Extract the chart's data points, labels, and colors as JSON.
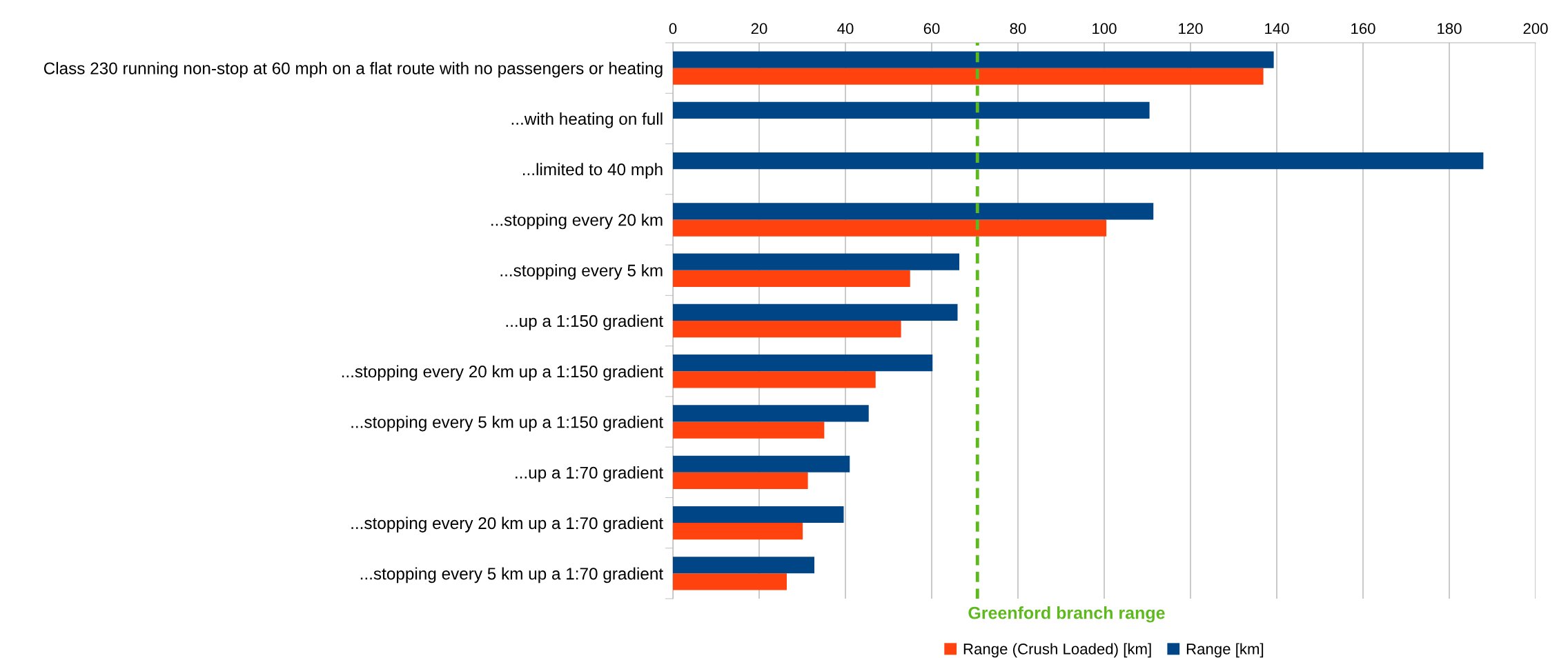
{
  "chart_data": {
    "type": "bar",
    "orientation": "horizontal",
    "categories": [
      "Class 230 running non-stop at 60 mph on a flat route with no passengers or heating",
      "...with heating on full",
      "...limited to 40 mph",
      "...stopping every 20 km",
      "...stopping every 5 km",
      "...up a 1:150 gradient",
      "...stopping every 20 km up a 1:150 gradient",
      "...stopping every 5 km up a 1:150 gradient",
      "...up a 1:70 gradient",
      "...stopping every 20 km up a 1:70 gradient",
      "...stopping every 5 km up a 1:70 gradient"
    ],
    "series": [
      {
        "name": "Range (Crush Loaded) [km]",
        "color": "#ff420e",
        "values": [
          136.9,
          null,
          null,
          100.5,
          55.0,
          52.9,
          47.0,
          35.1,
          31.3,
          30.1,
          26.4
        ]
      },
      {
        "name": "Range [km]",
        "color": "#004586",
        "values": [
          139.3,
          110.5,
          187.9,
          111.4,
          66.4,
          66.0,
          60.2,
          45.4,
          41.0,
          39.6,
          32.8
        ]
      }
    ],
    "xlim": [
      0,
      200
    ],
    "xticks": [
      0,
      20,
      40,
      60,
      80,
      100,
      120,
      140,
      160,
      180,
      200
    ],
    "grid": "x",
    "legend": "bottom",
    "ref_lines": [
      {
        "axis": "x",
        "value": 70.6,
        "label": "Greenford branch range",
        "color": "#5eb91e",
        "line_style": "dashed"
      }
    ]
  }
}
